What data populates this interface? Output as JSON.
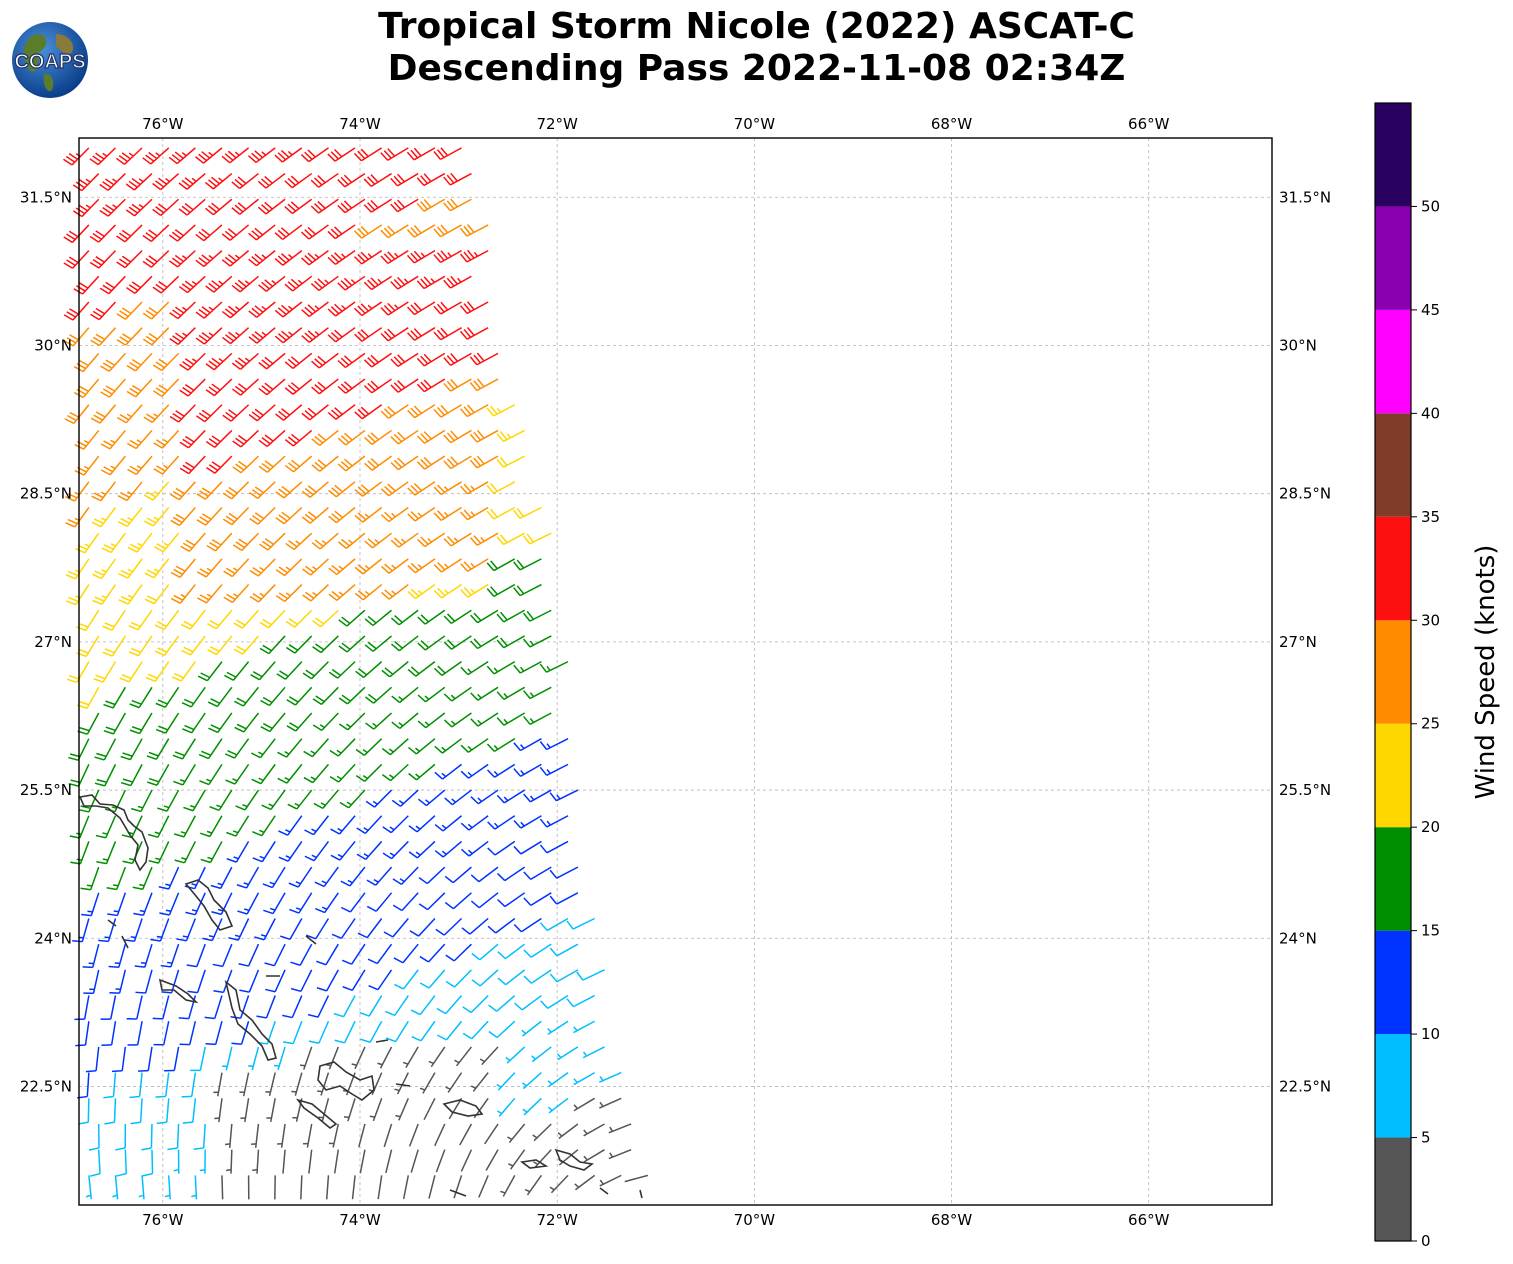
{
  "logo": {
    "text": "COAPS"
  },
  "title": {
    "line1": "Tropical Storm Nicole (2022) ASCAT-C",
    "line2": "Descending Pass 2022-11-08 02:34Z"
  },
  "map": {
    "lon_range": [
      -76.85,
      -64.75
    ],
    "lat_range": [
      21.3,
      32.1
    ],
    "lon_ticks": [
      {
        "value": -76,
        "label": "76°W"
      },
      {
        "value": -74,
        "label": "74°W"
      },
      {
        "value": -72,
        "label": "72°W"
      },
      {
        "value": -70,
        "label": "70°W"
      },
      {
        "value": -68,
        "label": "68°W"
      },
      {
        "value": -66,
        "label": "66°W"
      }
    ],
    "lat_ticks": [
      {
        "value": 31.5,
        "label": "31.5°N"
      },
      {
        "value": 30,
        "label": "30°N"
      },
      {
        "value": 28.5,
        "label": "28.5°N"
      },
      {
        "value": 27,
        "label": "27°N"
      },
      {
        "value": 25.5,
        "label": "25.5°N"
      },
      {
        "value": 24,
        "label": "24°N"
      },
      {
        "value": 22.5,
        "label": "22.5°N"
      }
    ],
    "gridlines": true,
    "swath": {
      "west_edge": [
        [
          -76.75,
          32.0
        ],
        [
          -76.75,
          21.4
        ]
      ],
      "east_edge": [
        [
          -72.75,
          32.0
        ],
        [
          -72.55,
          30.2
        ],
        [
          -71.9,
          27.5
        ],
        [
          -71.7,
          25.0
        ],
        [
          -71.2,
          22.0
        ],
        [
          -71.0,
          21.5
        ]
      ]
    }
  },
  "colorbar": {
    "label": "Wind Speed (knots)",
    "range": [
      0,
      55
    ],
    "bins": [
      {
        "from": 0,
        "to": 5,
        "color": "#555555"
      },
      {
        "from": 5,
        "to": 10,
        "color": "#00bfff"
      },
      {
        "from": 10,
        "to": 15,
        "color": "#0033ff"
      },
      {
        "from": 15,
        "to": 20,
        "color": "#008f00"
      },
      {
        "from": 20,
        "to": 25,
        "color": "#ffd700"
      },
      {
        "from": 25,
        "to": 30,
        "color": "#ff8c00"
      },
      {
        "from": 30,
        "to": 35,
        "color": "#ff1010"
      },
      {
        "from": 35,
        "to": 40,
        "color": "#803c28"
      },
      {
        "from": 40,
        "to": 45,
        "color": "#ff00ff"
      },
      {
        "from": 45,
        "to": 50,
        "color": "#8a00b0"
      },
      {
        "from": 50,
        "to": 55,
        "color": "#2a0060"
      }
    ],
    "ticks": [
      "0",
      "5",
      "10",
      "15",
      "20",
      "25",
      "30",
      "35",
      "40",
      "45",
      "50"
    ]
  }
}
